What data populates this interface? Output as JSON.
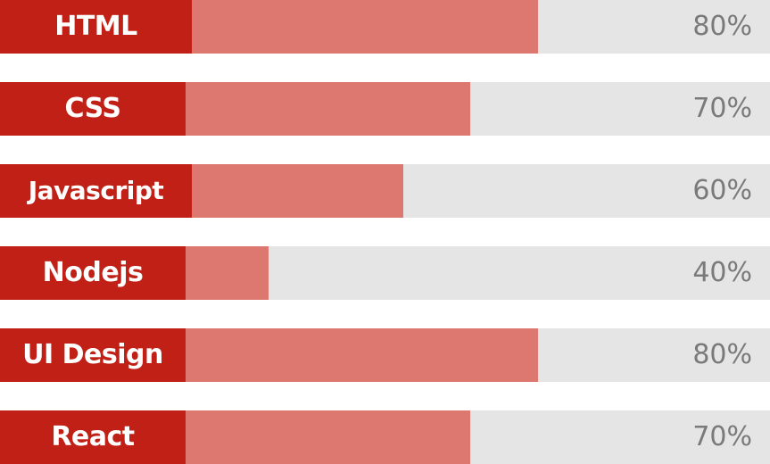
{
  "skills": [
    {
      "name": "HTML",
      "percent_label": "80%",
      "level": 0.8
    },
    {
      "name": "CSS",
      "percent_label": "70%",
      "level": 0.7
    },
    {
      "name": "Javascript",
      "percent_label": "60%",
      "level": 0.6
    },
    {
      "name": "Nodejs",
      "percent_label": "40%",
      "level": 0.4
    },
    {
      "name": "UI Design",
      "percent_label": "80%",
      "level": 0.8
    },
    {
      "name": "React",
      "percent_label": "70%",
      "level": 0.7
    }
  ],
  "colors": {
    "label_bg": "#c02015",
    "fill": "#dd7870",
    "track": "#e5e5e5",
    "percent_text": "#7a7a7a"
  }
}
